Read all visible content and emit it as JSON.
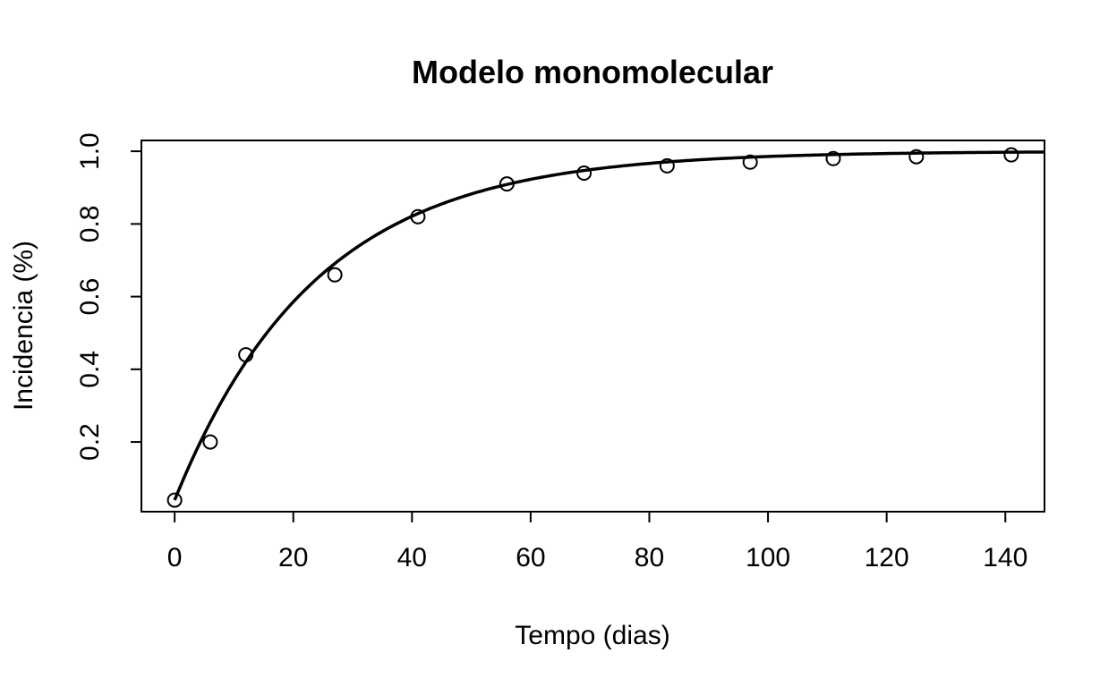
{
  "chart_data": {
    "type": "scatter",
    "title": "Modelo monomolecular",
    "xlabel": "Tempo (dias)",
    "ylabel": "Incidencia (%)",
    "xlim": [
      -5.6,
      146.6
    ],
    "ylim": [
      0.0082,
      1.0298
    ],
    "x_ticks": [
      0,
      20,
      40,
      60,
      80,
      100,
      120,
      140
    ],
    "x_tick_labels": [
      "0",
      "20",
      "40",
      "60",
      "80",
      "100",
      "120",
      "140"
    ],
    "y_ticks": [
      0.2,
      0.4,
      0.6,
      0.8,
      1.0
    ],
    "y_tick_labels": [
      "0.2",
      "0.4",
      "0.6",
      "0.8",
      "1.0"
    ],
    "grid": false,
    "series": [
      {
        "name": "observed",
        "kind": "points",
        "marker": "open-circle",
        "color": "#000000",
        "x": [
          0,
          6,
          12,
          27,
          41,
          56,
          69,
          83,
          97,
          111,
          125,
          141
        ],
        "y": [
          0.04,
          0.2,
          0.44,
          0.66,
          0.82,
          0.91,
          0.94,
          0.96,
          0.97,
          0.98,
          0.985,
          0.99
        ]
      },
      {
        "name": "fitted model",
        "kind": "line",
        "color": "#000000",
        "model": "y = 1 - (1 - y0) * exp(-r * t)",
        "y0": 0.04,
        "r": 0.042,
        "x_range": [
          0,
          146.6
        ]
      }
    ]
  }
}
